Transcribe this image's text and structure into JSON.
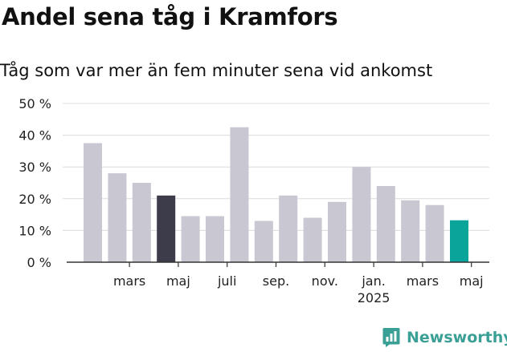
{
  "chart_data": {
    "type": "bar",
    "title": "Andel sena tåg i Kramfors",
    "subtitle": "Tåg som var mer än fem minuter sena vid ankomst",
    "ylim": [
      0,
      50
    ],
    "yticks": [
      0,
      10,
      20,
      30,
      40,
      50
    ],
    "ytick_labels": [
      "0 %",
      "10 %",
      "20 %",
      "30 %",
      "40 %",
      "50 %"
    ],
    "values": [
      37.5,
      28,
      25,
      21,
      14.5,
      14.5,
      42.5,
      13,
      21,
      14,
      19,
      30,
      24,
      19.5,
      18,
      13.2
    ],
    "highlight": [
      3,
      15
    ],
    "highlight_colors": [
      "#3d3c4a",
      "#0aa59a"
    ],
    "bar_color": "#c8c7d2",
    "x_tick_labels": [
      {
        "index": 1.5,
        "label": "mars"
      },
      {
        "index": 3.5,
        "label": "maj"
      },
      {
        "index": 5.5,
        "label": "juli"
      },
      {
        "index": 7.5,
        "label": "sep."
      },
      {
        "index": 9.5,
        "label": "nov."
      },
      {
        "index": 11.5,
        "label": "jan.",
        "sublabel": "2025"
      },
      {
        "index": 13.5,
        "label": "mars"
      },
      {
        "index": 15.5,
        "label": "maj"
      }
    ],
    "grid": true
  },
  "brand": {
    "name": "Newsworthy",
    "color": "#3a9f95",
    "icon": "bar-chart-badge-icon"
  }
}
